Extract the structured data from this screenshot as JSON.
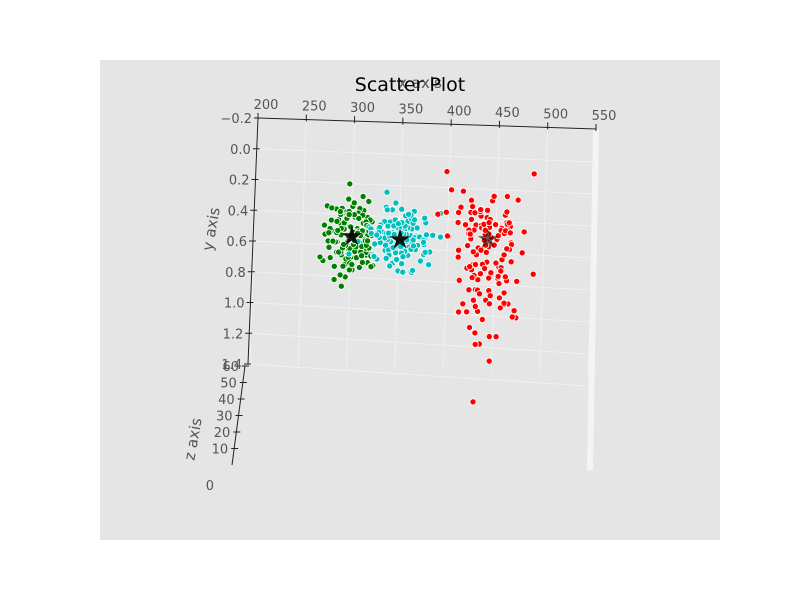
{
  "chart_data": {
    "type": "scatter",
    "dimensions": "3d",
    "title": "Scatter Plot",
    "xlabel": "x axis",
    "ylabel": "y axis",
    "zlabel": "z axis",
    "xlim": [
      200,
      550
    ],
    "ylim": [
      -0.2,
      1.4
    ],
    "zlim": [
      0,
      60
    ],
    "x_ticks": [
      "200",
      "250",
      "300",
      "350",
      "400",
      "450",
      "500",
      "550"
    ],
    "y_ticks": [
      "−0.2",
      "0.0",
      "0.2",
      "0.4",
      "0.6",
      "0.8",
      "1.0",
      "1.2",
      "1.4"
    ],
    "z_ticks": [
      "0",
      "10",
      "20",
      "30",
      "40",
      "50",
      "60"
    ],
    "background_color": "#e5e5e5",
    "grid": true,
    "series": [
      {
        "color": "#008000",
        "centroid": {
          "x": 302,
          "y": 0.55
        }
      },
      {
        "color": "#00bfbf",
        "centroid": {
          "x": 352,
          "y": 0.56
        }
      },
      {
        "color": "#ff0000",
        "centroid": {
          "x": 443,
          "y": 0.54
        }
      }
    ],
    "centroid_marker_color": "#000000"
  }
}
